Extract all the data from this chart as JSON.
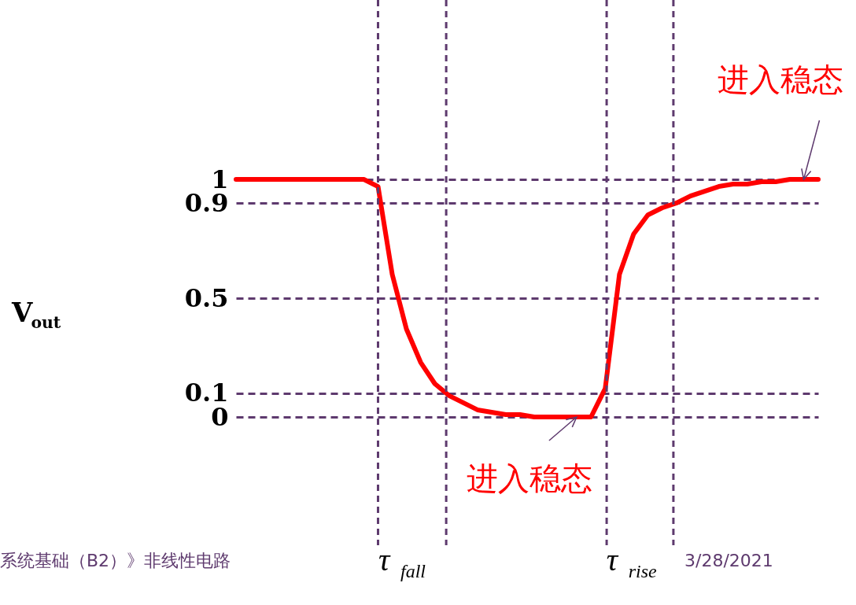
{
  "chart_data": {
    "type": "line",
    "ylabel": "V$_{out}$",
    "categories": [
      null,
      null,
      null,
      null,
      null,
      null,
      null,
      null,
      null,
      null,
      null,
      null,
      null,
      null,
      null,
      null,
      null,
      null,
      null,
      null,
      null,
      null,
      null,
      null,
      null,
      null,
      null,
      null,
      null,
      null,
      null,
      null,
      null,
      null,
      null,
      null,
      null,
      null,
      null,
      null,
      null,
      null
    ],
    "series": [
      {
        "color": "#ff0000",
        "values": [
          1,
          1,
          1,
          1,
          1,
          1,
          1,
          1,
          1,
          1,
          0.97,
          0.6,
          0.37,
          0.23,
          0.14,
          0.09,
          0.06,
          0.03,
          0.02,
          0.01,
          0.01,
          0,
          0,
          0,
          0,
          0,
          0.12,
          0.6,
          0.77,
          0.85,
          0.88,
          0.9,
          0.93,
          0.95,
          0.97,
          0.98,
          0.98,
          0.99,
          0.99,
          1,
          1,
          1
        ]
      }
    ],
    "ylim": [
      0,
      1
    ],
    "yticks": [
      0,
      0.1,
      0.5,
      0.9,
      1
    ],
    "tick_labels": "y",
    "grid": "y",
    "annotations": [
      {
        "text": "进入稳态",
        "y": 1
      },
      "τ$_{fall}$",
      "τ$_{rise}$",
      {
        "text": "进入稳态",
        "y": 0
      },
      "系统基础（B2）》非线性电路",
      "3/28/2021"
    ]
  }
}
